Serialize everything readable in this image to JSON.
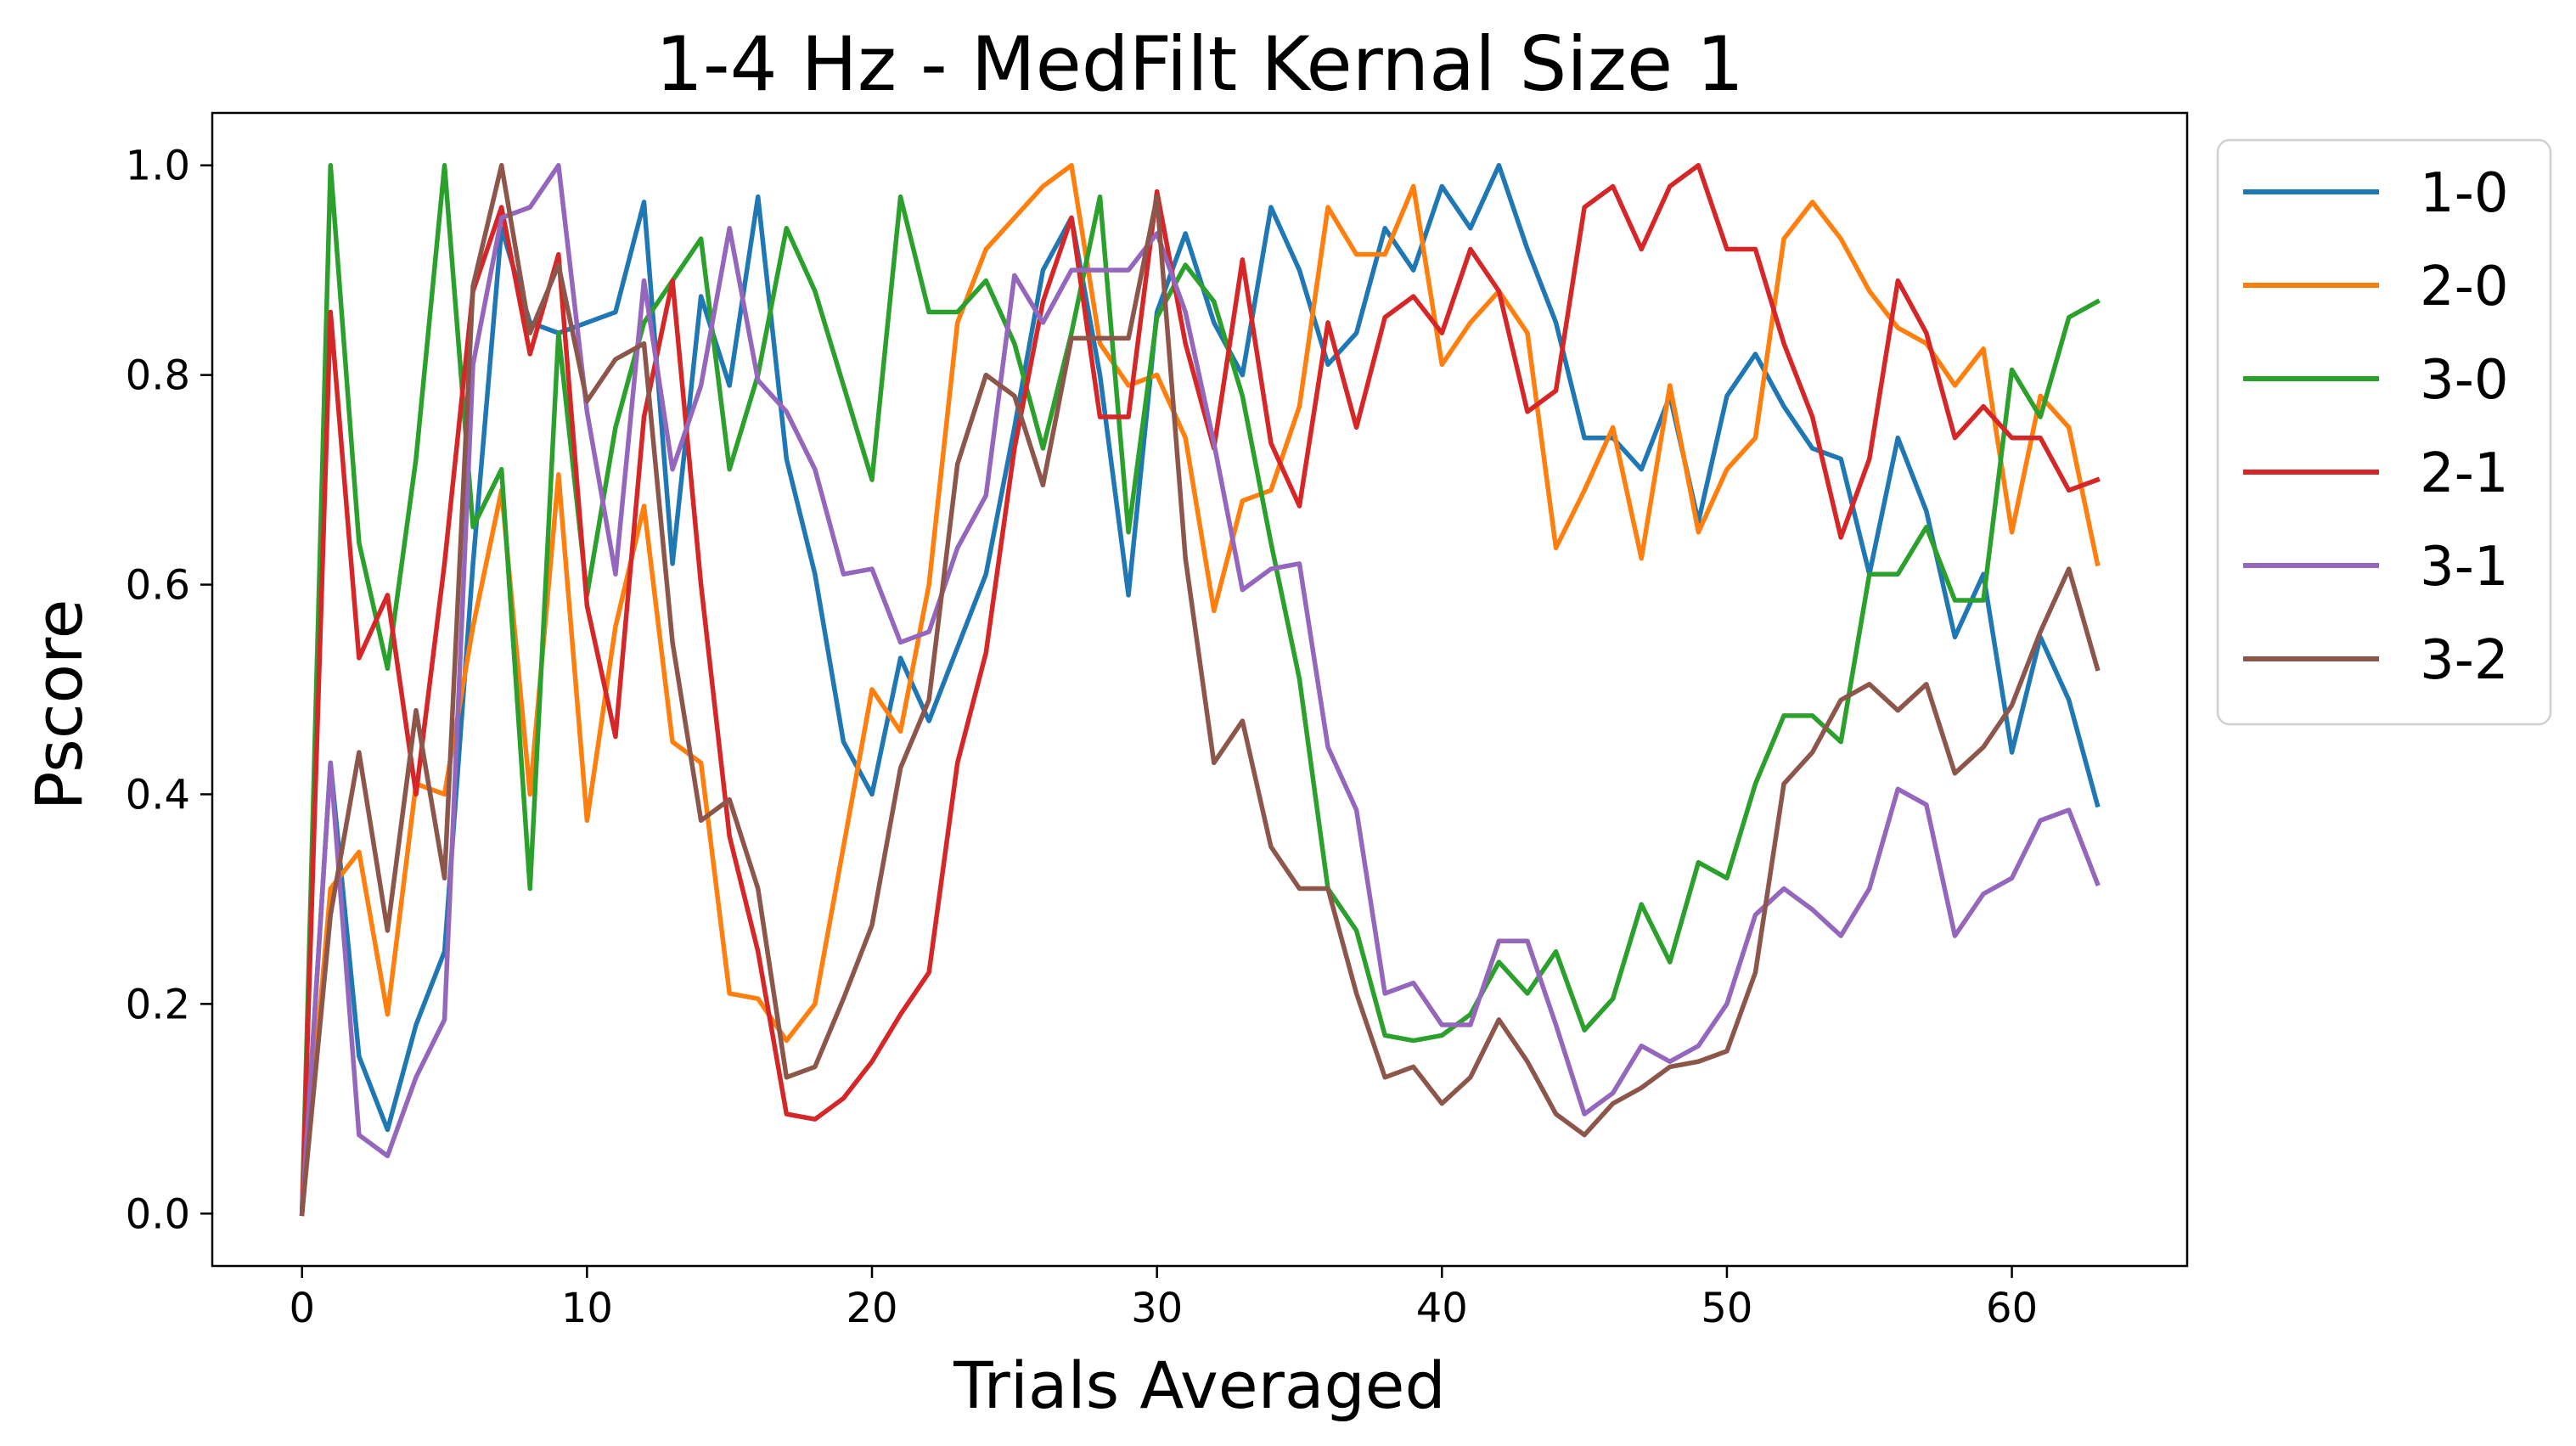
{
  "chart_data": {
    "type": "line",
    "title": "1-4 Hz - MedFilt Kernal Size 1",
    "xlabel": "Trials Averaged",
    "ylabel": "Pscore",
    "xlim": [
      -3.15,
      66.15
    ],
    "ylim": [
      -0.05,
      1.05
    ],
    "xticks": [
      "0",
      "10",
      "20",
      "30",
      "40",
      "50",
      "60"
    ],
    "yticks": [
      "0.0",
      "0.2",
      "0.4",
      "0.6",
      "0.8",
      "1.0"
    ],
    "grid": false,
    "legend_position": "outside-right-top",
    "x": [
      0,
      1,
      2,
      3,
      4,
      5,
      6,
      7,
      8,
      9,
      10,
      11,
      12,
      13,
      14,
      15,
      16,
      17,
      18,
      19,
      20,
      21,
      22,
      23,
      24,
      25,
      26,
      27,
      28,
      29,
      30,
      31,
      32,
      33,
      34,
      35,
      36,
      37,
      38,
      39,
      40,
      41,
      42,
      43,
      44,
      45,
      46,
      47,
      48,
      49,
      50,
      51,
      52,
      53,
      54,
      55,
      56,
      57,
      58,
      59,
      60,
      61,
      62,
      63
    ],
    "series": [
      {
        "name": "1-0",
        "color": "#1f77b4",
        "values": [
          0.0,
          0.43,
          0.15,
          0.08,
          0.18,
          0.25,
          0.62,
          0.94,
          0.85,
          0.84,
          0.85,
          0.86,
          0.965,
          0.62,
          0.875,
          0.79,
          0.97,
          0.72,
          0.61,
          0.45,
          0.4,
          0.53,
          0.47,
          0.54,
          0.61,
          0.75,
          0.9,
          0.95,
          0.8,
          0.59,
          0.86,
          0.935,
          0.85,
          0.8,
          0.96,
          0.9,
          0.81,
          0.84,
          0.94,
          0.9,
          0.98,
          0.94,
          1.0,
          0.92,
          0.85,
          0.74,
          0.74,
          0.71,
          0.78,
          0.66,
          0.78,
          0.82,
          0.77,
          0.73,
          0.72,
          0.61,
          0.74,
          0.67,
          0.55,
          0.61,
          0.44,
          0.55,
          0.49,
          0.39
        ]
      },
      {
        "name": "2-0",
        "color": "#ff7f0e",
        "values": [
          0.0,
          0.31,
          0.345,
          0.19,
          0.41,
          0.4,
          0.56,
          0.69,
          0.4,
          0.705,
          0.375,
          0.56,
          0.675,
          0.45,
          0.43,
          0.21,
          0.205,
          0.165,
          0.2,
          0.35,
          0.5,
          0.46,
          0.6,
          0.85,
          0.92,
          0.95,
          0.98,
          1.0,
          0.83,
          0.79,
          0.8,
          0.74,
          0.575,
          0.68,
          0.69,
          0.77,
          0.96,
          0.915,
          0.915,
          0.98,
          0.81,
          0.85,
          0.88,
          0.84,
          0.635,
          0.69,
          0.75,
          0.625,
          0.79,
          0.65,
          0.71,
          0.74,
          0.93,
          0.965,
          0.93,
          0.88,
          0.845,
          0.83,
          0.79,
          0.825,
          0.65,
          0.78,
          0.75,
          0.62
        ]
      },
      {
        "name": "3-0",
        "color": "#2ca02c",
        "values": [
          0.0,
          1.0,
          0.64,
          0.52,
          0.72,
          1.0,
          0.655,
          0.71,
          0.31,
          0.84,
          0.59,
          0.75,
          0.85,
          0.89,
          0.93,
          0.71,
          0.8,
          0.94,
          0.88,
          0.79,
          0.7,
          0.97,
          0.86,
          0.86,
          0.89,
          0.83,
          0.73,
          0.84,
          0.97,
          0.65,
          0.855,
          0.905,
          0.87,
          0.78,
          0.64,
          0.51,
          0.31,
          0.27,
          0.17,
          0.165,
          0.17,
          0.19,
          0.24,
          0.21,
          0.25,
          0.175,
          0.205,
          0.295,
          0.24,
          0.335,
          0.32,
          0.41,
          0.475,
          0.475,
          0.45,
          0.61,
          0.61,
          0.655,
          0.585,
          0.585,
          0.805,
          0.76,
          0.855,
          0.87
        ]
      },
      {
        "name": "2-1",
        "color": "#d62728",
        "values": [
          0.0,
          0.86,
          0.53,
          0.59,
          0.4,
          0.62,
          0.88,
          0.96,
          0.82,
          0.915,
          0.58,
          0.455,
          0.76,
          0.89,
          0.6,
          0.36,
          0.25,
          0.095,
          0.09,
          0.11,
          0.145,
          0.19,
          0.23,
          0.43,
          0.535,
          0.73,
          0.87,
          0.95,
          0.76,
          0.76,
          0.975,
          0.83,
          0.73,
          0.91,
          0.735,
          0.675,
          0.85,
          0.75,
          0.855,
          0.875,
          0.84,
          0.92,
          0.88,
          0.765,
          0.785,
          0.96,
          0.98,
          0.92,
          0.98,
          1.0,
          0.92,
          0.92,
          0.83,
          0.76,
          0.645,
          0.72,
          0.89,
          0.84,
          0.74,
          0.77,
          0.74,
          0.74,
          0.69,
          0.7
        ]
      },
      {
        "name": "3-1",
        "color": "#9467bd",
        "values": [
          0.0,
          0.43,
          0.075,
          0.055,
          0.13,
          0.185,
          0.81,
          0.95,
          0.96,
          1.0,
          0.765,
          0.61,
          0.89,
          0.71,
          0.79,
          0.94,
          0.795,
          0.765,
          0.71,
          0.61,
          0.615,
          0.545,
          0.555,
          0.635,
          0.685,
          0.895,
          0.85,
          0.9,
          0.9,
          0.9,
          0.935,
          0.86,
          0.735,
          0.595,
          0.615,
          0.62,
          0.445,
          0.385,
          0.21,
          0.22,
          0.18,
          0.18,
          0.26,
          0.26,
          0.18,
          0.095,
          0.115,
          0.16,
          0.145,
          0.16,
          0.2,
          0.285,
          0.31,
          0.29,
          0.265,
          0.31,
          0.405,
          0.39,
          0.265,
          0.305,
          0.32,
          0.375,
          0.385,
          0.315
        ]
      },
      {
        "name": "3-2",
        "color": "#8c564b",
        "values": [
          0.0,
          0.285,
          0.44,
          0.27,
          0.48,
          0.32,
          0.885,
          1.0,
          0.84,
          0.905,
          0.775,
          0.815,
          0.83,
          0.545,
          0.375,
          0.395,
          0.31,
          0.13,
          0.14,
          0.205,
          0.275,
          0.425,
          0.49,
          0.715,
          0.8,
          0.78,
          0.695,
          0.835,
          0.835,
          0.835,
          0.97,
          0.625,
          0.43,
          0.47,
          0.35,
          0.31,
          0.31,
          0.21,
          0.13,
          0.14,
          0.105,
          0.13,
          0.185,
          0.145,
          0.095,
          0.075,
          0.105,
          0.12,
          0.14,
          0.145,
          0.155,
          0.23,
          0.41,
          0.44,
          0.49,
          0.505,
          0.48,
          0.505,
          0.42,
          0.445,
          0.485,
          0.555,
          0.615,
          0.52
        ]
      }
    ]
  }
}
